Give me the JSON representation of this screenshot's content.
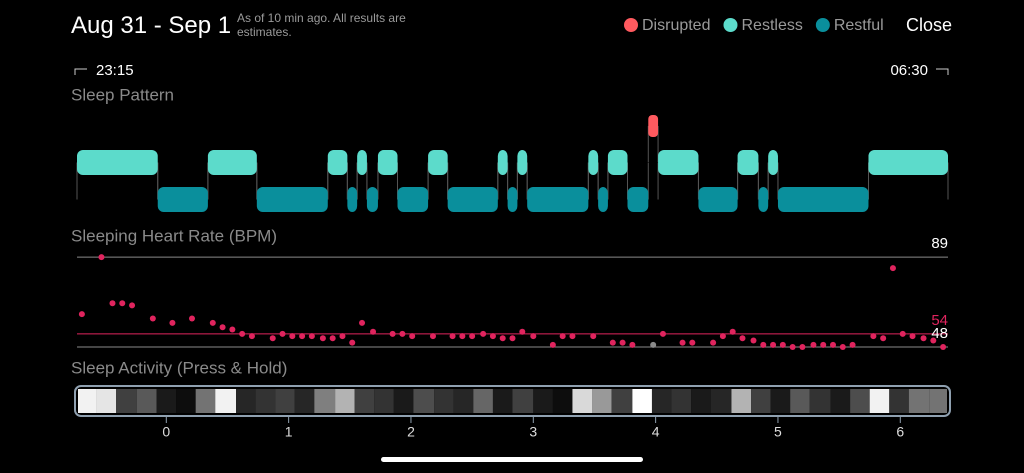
{
  "header": {
    "title": "Aug 31 - Sep 1",
    "note": "As of 10 min ago. All results are estimates.",
    "close": "Close",
    "range": {
      "start": "23:15",
      "end": "06:30"
    }
  },
  "chart_data": [
    {
      "type": "timeline",
      "title": "Sleep Pattern",
      "xlim": [
        -0.73,
        6.39
      ],
      "series": [
        {
          "name": "Disrupted",
          "color": "#ff5a5f",
          "segments": [
            [
              3.94,
              4.02
            ]
          ]
        },
        {
          "name": "Restless",
          "color": "#5cdbcb",
          "segments": [
            [
              -0.73,
              -0.07
            ],
            [
              0.34,
              0.74
            ],
            [
              1.32,
              1.48
            ],
            [
              1.56,
              1.64
            ],
            [
              1.73,
              1.89
            ],
            [
              2.14,
              2.3
            ],
            [
              2.71,
              2.79
            ],
            [
              2.87,
              2.95
            ],
            [
              3.45,
              3.53
            ],
            [
              3.61,
              3.77
            ],
            [
              4.02,
              4.35
            ],
            [
              4.67,
              4.84
            ],
            [
              4.92,
              5.0
            ],
            [
              5.74,
              6.39
            ]
          ]
        },
        {
          "name": "Restful",
          "color": "#0a8f9c",
          "segments": [
            [
              -0.07,
              0.34
            ],
            [
              0.74,
              1.32
            ],
            [
              1.48,
              1.56
            ],
            [
              1.64,
              1.73
            ],
            [
              1.89,
              2.14
            ],
            [
              2.3,
              2.71
            ],
            [
              2.79,
              2.87
            ],
            [
              2.95,
              3.45
            ],
            [
              3.53,
              3.61
            ],
            [
              3.77,
              3.94
            ],
            [
              4.35,
              4.67
            ],
            [
              4.84,
              4.92
            ],
            [
              5.0,
              5.74
            ]
          ]
        }
      ]
    },
    {
      "type": "scatter",
      "title": "Sleeping Heart Rate (BPM)",
      "xlim": [
        -0.73,
        6.39
      ],
      "ylim": [
        44,
        92
      ],
      "color": "#e0245e",
      "highlight": {
        "index": 44,
        "color": "#8a8a8a"
      },
      "reference_lines": [
        {
          "value": 89,
          "color": "#8a8a8a"
        },
        {
          "value": 54,
          "color": "#e0245e"
        },
        {
          "value": 48,
          "color": "#8a8a8a"
        }
      ],
      "x": [
        -0.69,
        -0.53,
        -0.44,
        -0.36,
        -0.28,
        -0.11,
        0.05,
        0.21,
        0.38,
        0.46,
        0.54,
        0.62,
        0.7,
        0.87,
        0.95,
        1.03,
        1.11,
        1.19,
        1.28,
        1.36,
        1.44,
        1.52,
        1.6,
        1.69,
        1.85,
        1.93,
        2.01,
        2.18,
        2.34,
        2.42,
        2.5,
        2.59,
        2.67,
        2.75,
        2.83,
        2.91,
        3.0,
        3.16,
        3.24,
        3.32,
        3.49,
        3.65,
        3.73,
        3.81,
        3.98,
        4.06,
        4.22,
        4.3,
        4.47,
        4.55,
        4.63,
        4.71,
        4.8,
        4.88,
        4.96,
        5.04,
        5.12,
        5.2,
        5.29,
        5.37,
        5.45,
        5.53,
        5.61,
        5.78,
        5.86,
        5.94,
        6.02,
        6.1,
        6.19,
        6.27,
        6.35
      ],
      "values": [
        63,
        89,
        68,
        68,
        67,
        61,
        59,
        61,
        59,
        57,
        56,
        54,
        53,
        52,
        54,
        53,
        53,
        53,
        52,
        52,
        53,
        50,
        59,
        55,
        54,
        54,
        53,
        53,
        53,
        53,
        53,
        54,
        53,
        52,
        52,
        55,
        53,
        49,
        53,
        53,
        53,
        50,
        50,
        49,
        49,
        54,
        50,
        50,
        50,
        53,
        55,
        52,
        51,
        49,
        49,
        49,
        48,
        48,
        49,
        49,
        49,
        48,
        49,
        53,
        52,
        84,
        54,
        53,
        52,
        51,
        48
      ]
    },
    {
      "type": "strip",
      "title": "Sleep Activity (Press & Hold)",
      "xlim": [
        -0.73,
        6.39
      ],
      "xticks": [
        0,
        1,
        2,
        3,
        4,
        5,
        6
      ],
      "bins": [
        -0.73,
        -0.57,
        -0.41,
        -0.24,
        -0.08,
        0.08,
        0.24,
        0.4,
        0.57,
        0.73,
        0.89,
        1.05,
        1.21,
        1.38,
        1.54,
        1.7,
        1.86,
        2.02,
        2.19,
        2.35,
        2.51,
        2.67,
        2.83,
        3.0,
        3.16,
        3.32,
        3.48,
        3.64,
        3.81,
        3.97,
        4.13,
        4.29,
        4.45,
        4.62,
        4.78,
        4.94,
        5.1,
        5.26,
        5.43,
        5.59,
        5.75,
        5.91,
        6.07,
        6.24,
        6.4
      ],
      "values": [
        95,
        90,
        25,
        35,
        10,
        5,
        45,
        95,
        15,
        20,
        25,
        15,
        50,
        70,
        25,
        20,
        10,
        30,
        20,
        15,
        40,
        10,
        25,
        10,
        5,
        85,
        60,
        25,
        100,
        15,
        20,
        10,
        15,
        70,
        25,
        10,
        35,
        20,
        10,
        30,
        95,
        20,
        45,
        45
      ]
    }
  ]
}
